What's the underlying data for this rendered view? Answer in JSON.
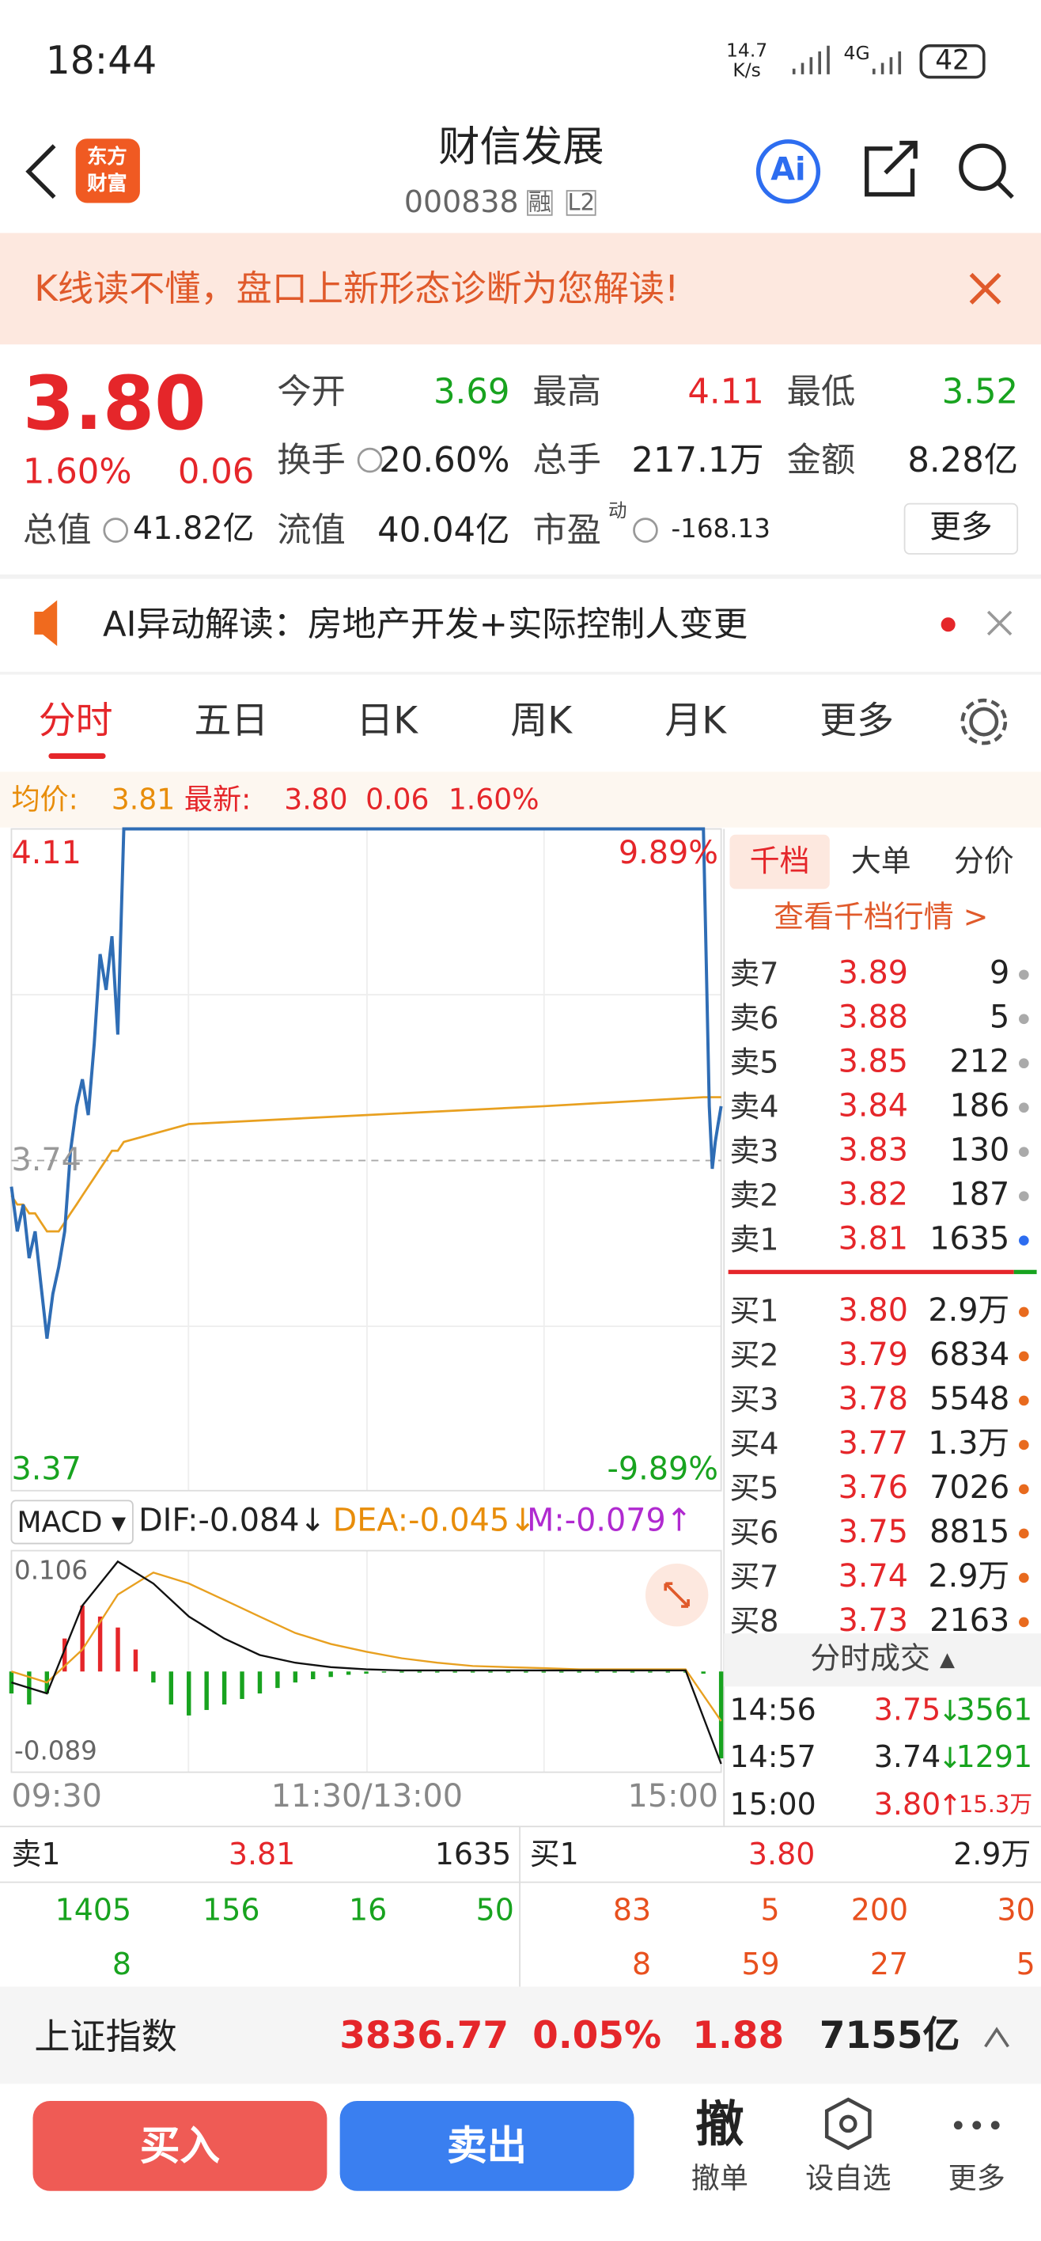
{
  "status_bar": {
    "time": "18:44",
    "net_speed": "14.7",
    "net_unit": "K/s",
    "network": "4G",
    "battery": "42"
  },
  "header": {
    "logo_line1": "东方",
    "logo_line2": "财富",
    "title": "财信发展",
    "code": "000838",
    "badge1": "融",
    "badge2": "L2",
    "ai": "Ai"
  },
  "banner": {
    "text": "K线读不懂，盘口上新形态诊断为您解读!"
  },
  "quote": {
    "price": "3.80",
    "pct": "1.60%",
    "change": "0.06",
    "stats": [
      [
        {
          "label": "今开",
          "value": "3.69",
          "tone": "down"
        },
        {
          "label": "最高",
          "value": "4.11",
          "tone": "up"
        },
        {
          "label": "最低",
          "value": "3.52",
          "tone": "down"
        }
      ],
      [
        {
          "label": "换手",
          "value": "20.60%",
          "tone": "flat"
        },
        {
          "label": "总手",
          "value": "217.1万",
          "tone": "flat"
        },
        {
          "label": "金额",
          "value": "8.28亿",
          "tone": "flat"
        }
      ]
    ],
    "total_label": "总值",
    "total_value": "41.82亿",
    "float_label": "流值",
    "float_value": "40.04亿",
    "pe_label": "市盈",
    "pe_sup": "动",
    "pe_value": "-168.13",
    "more": "更多"
  },
  "ai_alert": {
    "text": "AI异动解读：房地产开发+实际控制人变更"
  },
  "tabs": [
    "分时",
    "五日",
    "日K",
    "周K",
    "月K",
    "更多"
  ],
  "info_line": {
    "avg_label": "均价:",
    "avg_value": "3.81",
    "last_label": "最新:",
    "last_value": "3.80",
    "change": "0.06",
    "pct": "1.60%"
  },
  "intraday": {
    "top_label": "4.11",
    "mid_label": "3.74",
    "bottom_label": "3.37",
    "top_pct": "9.89%",
    "bottom_pct": "-9.89%",
    "time_labels": [
      "09:30",
      "11:30/13:00",
      "15:00"
    ],
    "xlim": [
      0,
      240
    ],
    "ylim": [
      3.37,
      4.11
    ],
    "minutes": [
      0,
      2,
      4,
      6,
      8,
      10,
      12,
      14,
      16,
      18,
      20,
      22,
      24,
      26,
      28,
      30,
      32,
      34,
      36,
      38,
      60,
      120,
      180,
      234,
      235,
      236,
      237,
      238,
      239,
      240
    ],
    "price": [
      3.71,
      3.66,
      3.69,
      3.63,
      3.66,
      3.6,
      3.54,
      3.59,
      3.62,
      3.66,
      3.75,
      3.8,
      3.83,
      3.79,
      3.87,
      3.97,
      3.93,
      3.99,
      3.88,
      4.11,
      4.11,
      4.11,
      4.11,
      4.11,
      3.96,
      3.8,
      3.73,
      3.76,
      3.78,
      3.8
    ],
    "avg": [
      3.7,
      3.69,
      3.69,
      3.68,
      3.68,
      3.67,
      3.66,
      3.66,
      3.66,
      3.67,
      3.68,
      3.69,
      3.7,
      3.71,
      3.72,
      3.73,
      3.74,
      3.75,
      3.75,
      3.76,
      3.78,
      3.79,
      3.8,
      3.81,
      3.81,
      3.81,
      3.81,
      3.81,
      3.81,
      3.81
    ]
  },
  "macd": {
    "name": "MACD ▾",
    "dif_label": "DIF:-0.084↓",
    "dea_label": "DEA:-0.045↓",
    "m_label": "M:-0.079↑",
    "top_label": "0.106",
    "bottom_label": "-0.089",
    "ylim": [
      -0.089,
      0.106
    ],
    "m_minutes": [
      0,
      6,
      12,
      18,
      24,
      30,
      36,
      42,
      48,
      54,
      60,
      66,
      72,
      78,
      84,
      90,
      96,
      102,
      108,
      114,
      120,
      126,
      132,
      138,
      144,
      150,
      156,
      162,
      168,
      174,
      180,
      186,
      192,
      198,
      204,
      210,
      216,
      222,
      228,
      234,
      240
    ],
    "m": [
      -0.02,
      -0.03,
      -0.02,
      0.03,
      0.06,
      0.05,
      0.04,
      0.02,
      -0.01,
      -0.03,
      -0.04,
      -0.035,
      -0.03,
      -0.025,
      -0.02,
      -0.015,
      -0.01,
      -0.007,
      -0.005,
      -0.003,
      -0.002,
      -0.001,
      -0.001,
      -0.001,
      -0.001,
      -0.001,
      -0.001,
      -0.001,
      -0.001,
      -0.001,
      -0.001,
      -0.001,
      -0.001,
      -0.001,
      -0.001,
      -0.001,
      -0.001,
      -0.001,
      -0.001,
      -0.002,
      -0.079
    ],
    "line_minutes": [
      0,
      12,
      24,
      36,
      48,
      60,
      72,
      84,
      96,
      108,
      120,
      132,
      144,
      156,
      168,
      180,
      192,
      204,
      216,
      228,
      240
    ],
    "dif": [
      -0.01,
      -0.02,
      0.06,
      0.1,
      0.08,
      0.05,
      0.03,
      0.015,
      0.008,
      0.004,
      0.002,
      0.001,
      0.001,
      0.001,
      0.001,
      0.001,
      0.001,
      0.001,
      0.001,
      0.001,
      -0.084
    ],
    "dea": [
      0,
      -0.01,
      0.02,
      0.07,
      0.09,
      0.08,
      0.065,
      0.05,
      0.035,
      0.025,
      0.018,
      0.012,
      0.008,
      0.005,
      0.004,
      0.003,
      0.002,
      0.002,
      0.002,
      0.002,
      -0.045
    ]
  },
  "order_book": {
    "tabs": [
      "千档",
      "大单",
      "分价"
    ],
    "link": "查看千档行情 >",
    "sells": [
      {
        "label": "卖7",
        "price": "3.89",
        "qty": "9"
      },
      {
        "label": "卖6",
        "price": "3.88",
        "qty": "5"
      },
      {
        "label": "卖5",
        "price": "3.85",
        "qty": "212"
      },
      {
        "label": "卖4",
        "price": "3.84",
        "qty": "186"
      },
      {
        "label": "卖3",
        "price": "3.83",
        "qty": "130"
      },
      {
        "label": "卖2",
        "price": "3.82",
        "qty": "187"
      },
      {
        "label": "卖1",
        "price": "3.81",
        "qty": "1635"
      }
    ],
    "buys": [
      {
        "label": "买1",
        "price": "3.80",
        "qty": "2.9万"
      },
      {
        "label": "买2",
        "price": "3.79",
        "qty": "6834"
      },
      {
        "label": "买3",
        "price": "3.78",
        "qty": "5548"
      },
      {
        "label": "买4",
        "price": "3.77",
        "qty": "1.3万"
      },
      {
        "label": "买5",
        "price": "3.76",
        "qty": "7026"
      },
      {
        "label": "买6",
        "price": "3.75",
        "qty": "8815"
      },
      {
        "label": "买7",
        "price": "3.74",
        "qty": "2.9万"
      },
      {
        "label": "买8",
        "price": "3.73",
        "qty": "2163"
      }
    ],
    "ticks_title": "分时成交 ▴",
    "trades": [
      {
        "time": "14:56",
        "price": "3.75",
        "dir": "↓",
        "qty": "3561"
      },
      {
        "time": "14:57",
        "price": "3.74",
        "dir": "↓",
        "qty": "1291"
      },
      {
        "time": "15:00",
        "price": "3.80",
        "dir": "↑",
        "qty": "15.3万"
      }
    ]
  },
  "queue": {
    "sell_label": "卖1",
    "sell_price": "3.81",
    "sell_qty": "1635",
    "sell_orders": [
      [
        "1405",
        "156",
        "16",
        "50"
      ],
      [
        "8"
      ]
    ],
    "buy_label": "买1",
    "buy_price": "3.80",
    "buy_qty": "2.9万",
    "buy_orders": [
      [
        "83",
        "5",
        "200",
        "30"
      ],
      [
        "8",
        "59",
        "27",
        "5"
      ]
    ]
  },
  "index_bar": {
    "name": "上证指数",
    "value": "3836.77",
    "pct": "0.05%",
    "change": "1.88",
    "amount": "7155亿"
  },
  "bottom_bar": {
    "buy": "买入",
    "sell": "卖出",
    "cancel_icon": "撤",
    "cancel": "撤单",
    "watch": "设自选",
    "more": "更多"
  }
}
